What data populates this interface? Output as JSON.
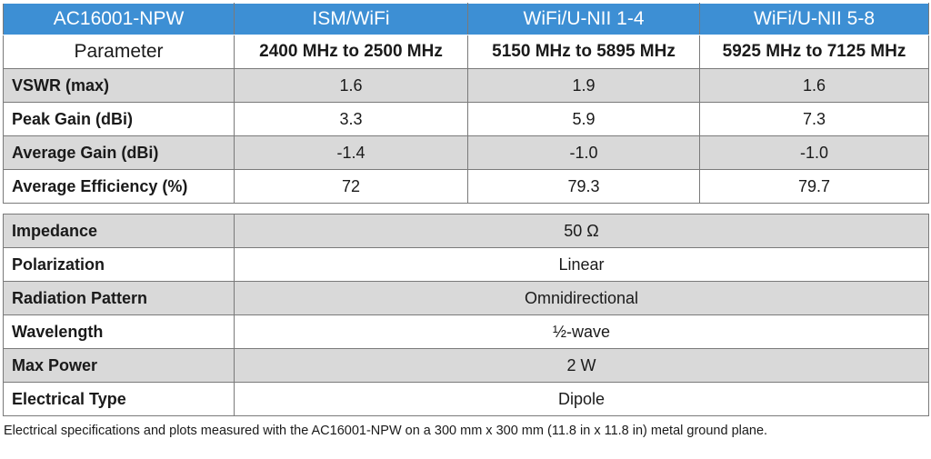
{
  "header": {
    "model": "AC16001-NPW",
    "bands": [
      "ISM/WiFi",
      "WiFi/U-NII 1-4",
      "WiFi/U-NII 5-8"
    ]
  },
  "subheader": {
    "label": "Parameter",
    "ranges": [
      "2400 MHz to 2500 MHz",
      "5150 MHz to 5895 MHz",
      "5925 MHz to 7125 MHz"
    ]
  },
  "band_rows": [
    {
      "label": "VSWR (max)",
      "values": [
        "1.6",
        "1.9",
        "1.6"
      ]
    },
    {
      "label": "Peak Gain (dBi)",
      "values": [
        "3.3",
        "5.9",
        "7.3"
      ]
    },
    {
      "label": "Average Gain (dBi)",
      "values": [
        "-1.4",
        "-1.0",
        "-1.0"
      ]
    },
    {
      "label": "Average Efficiency (%)",
      "values": [
        "72",
        "79.3",
        "79.7"
      ]
    }
  ],
  "common_rows": [
    {
      "label": "Impedance",
      "value": "50 Ω"
    },
    {
      "label": "Polarization",
      "value": "Linear"
    },
    {
      "label": "Radiation Pattern",
      "value": "Omnidirectional"
    },
    {
      "label": "Wavelength",
      "value": "½-wave"
    },
    {
      "label": "Max Power",
      "value": "2 W"
    },
    {
      "label": "Electrical Type",
      "value": "Dipole"
    }
  ],
  "footnote": "Electrical specifications and plots measured with the AC16001-NPW on a 300 mm x 300 mm (11.8 in x 11.8 in) metal ground plane.",
  "colors": {
    "header_bg": "#3d8fd4",
    "shade_bg": "#d9d9d9"
  }
}
